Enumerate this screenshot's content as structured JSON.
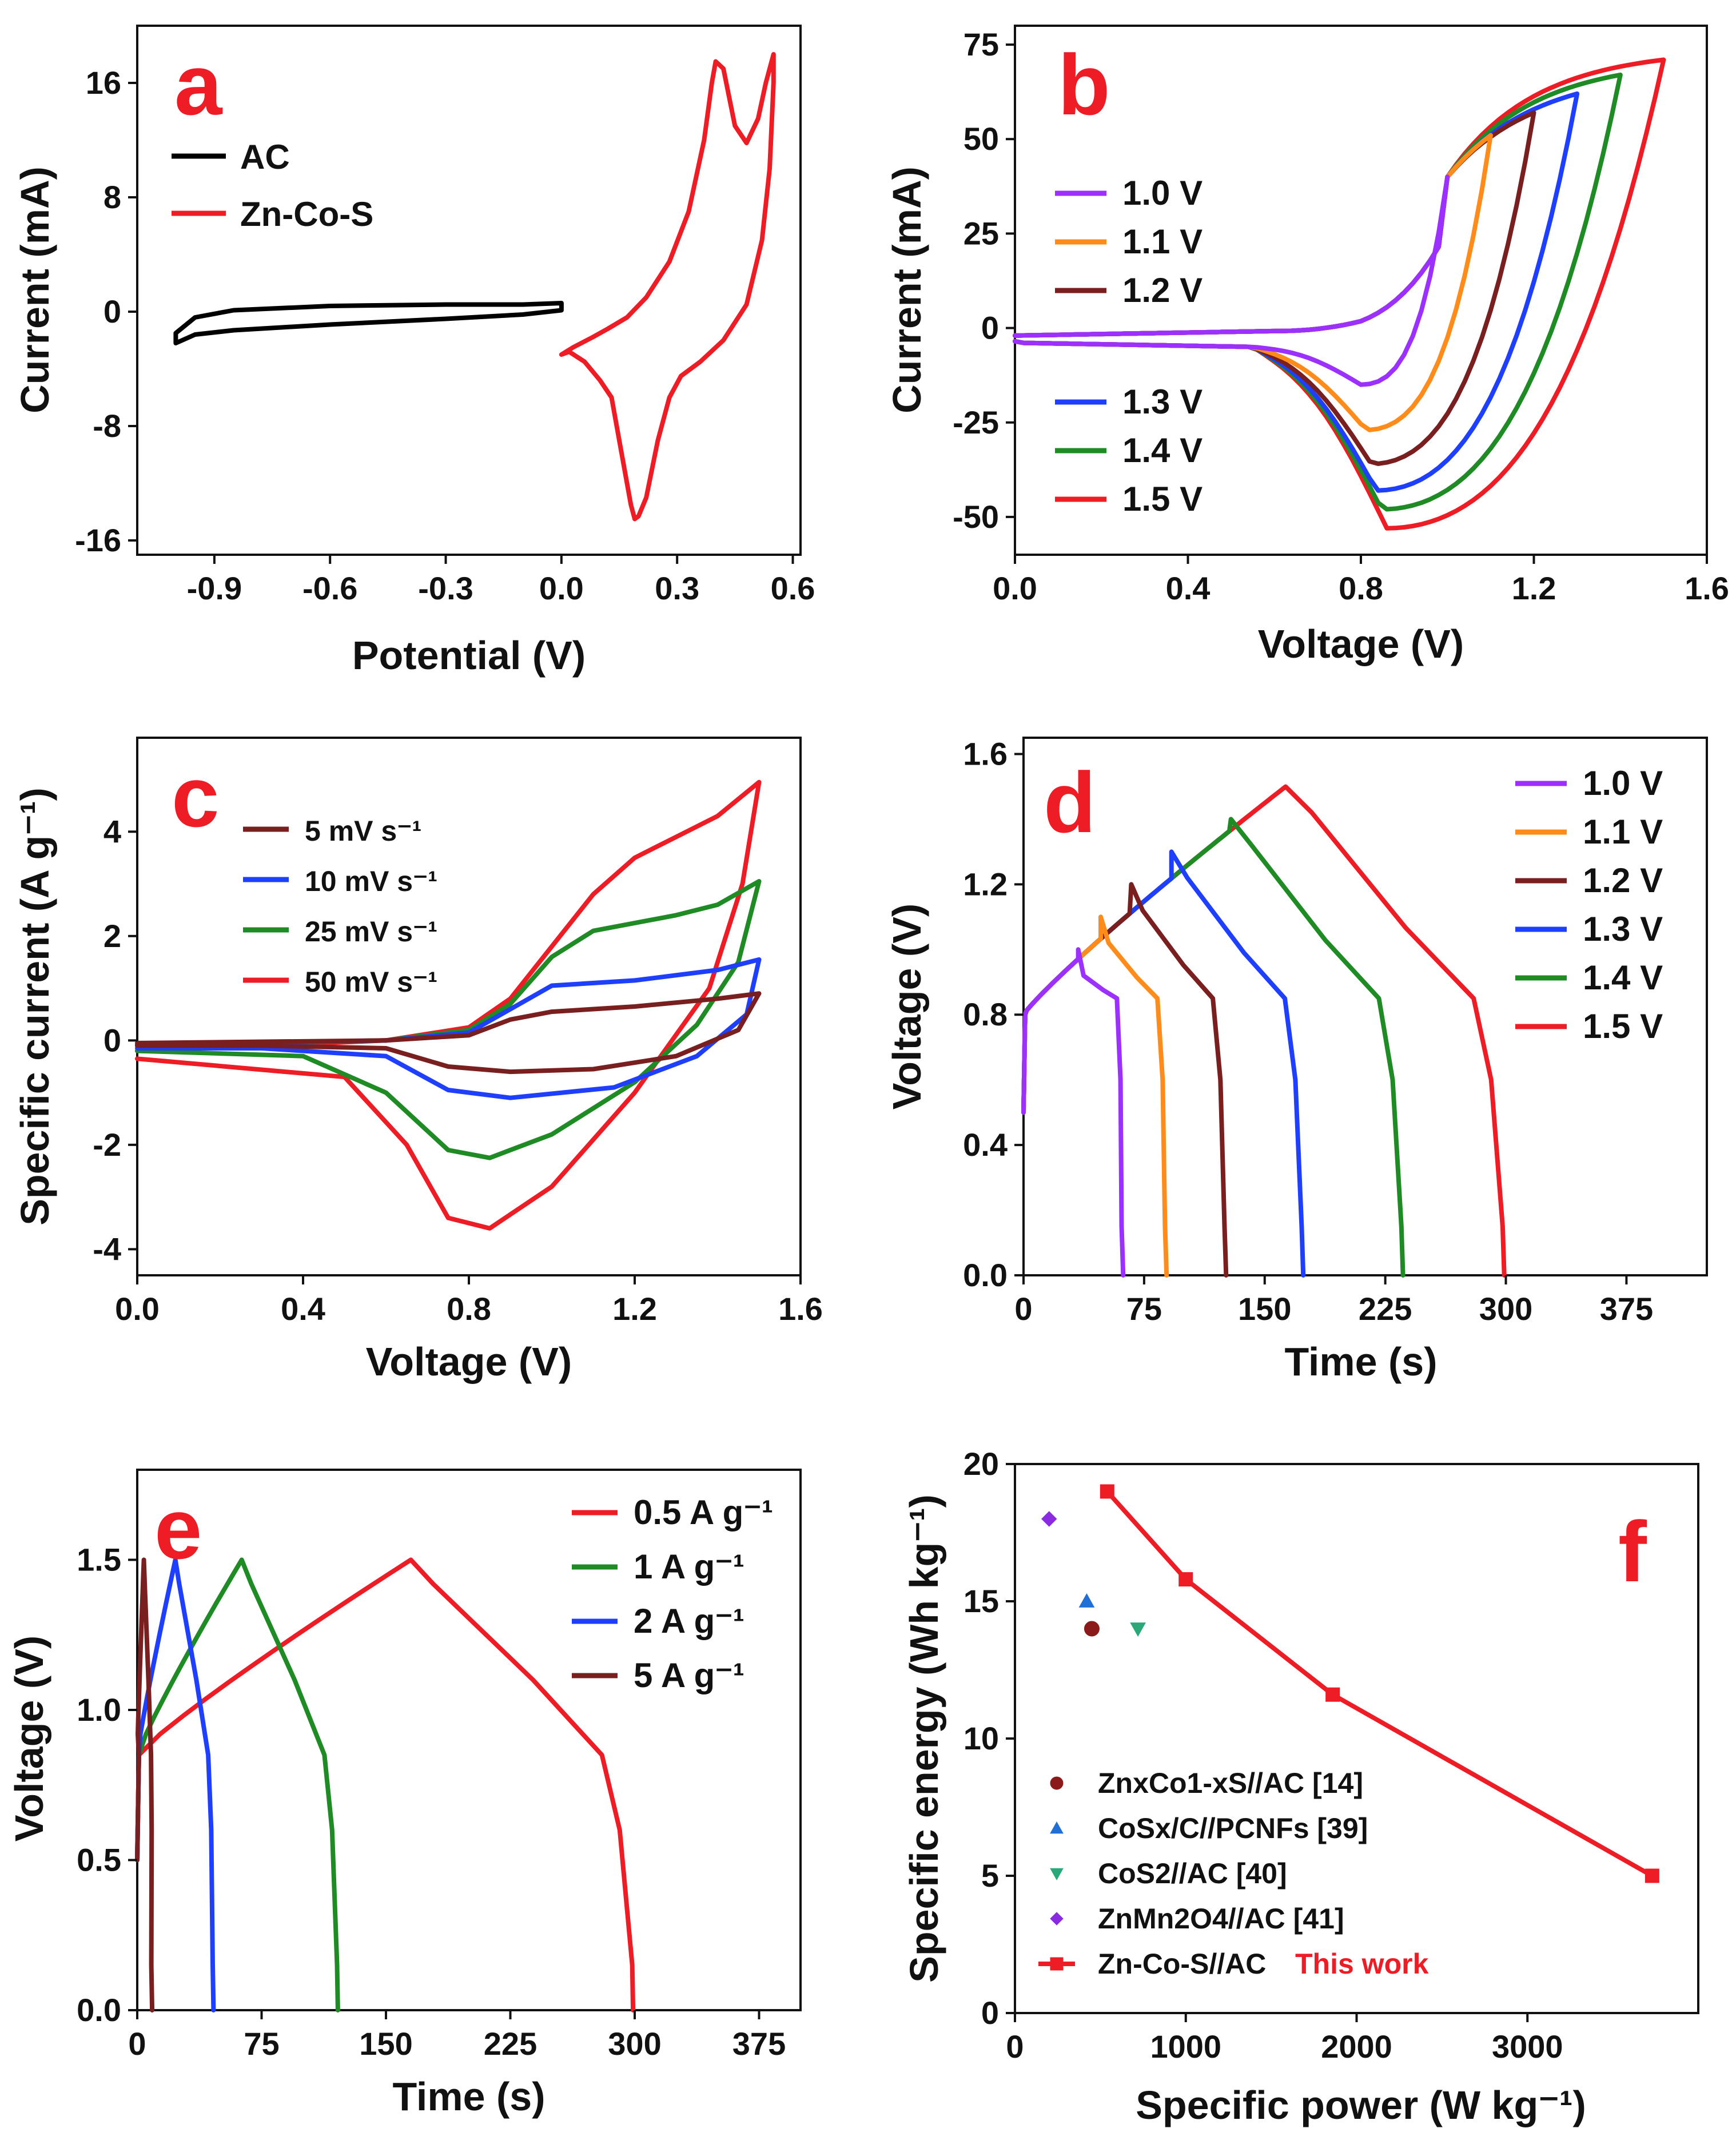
{
  "chart_data": [
    {
      "id": "a",
      "panel": "a",
      "type": "line",
      "xlabel": "Potential (V)",
      "ylabel": "Current (mA)",
      "xlim": [
        -1.1,
        0.62
      ],
      "ylim": [
        -17,
        20
      ],
      "xticks": [
        -0.9,
        -0.6,
        -0.3,
        0.0,
        0.3,
        0.6
      ],
      "xtick_labels": [
        "-0.9",
        "-0.6",
        "-0.3",
        "0.0",
        "0.3",
        "0.6"
      ],
      "yticks": [
        -16,
        -8,
        0,
        8,
        16
      ],
      "ytick_labels": [
        "-16",
        "-8",
        "0",
        "8",
        "16"
      ],
      "series": [
        {
          "name": "AC",
          "color": "#000000",
          "closed": true,
          "points": [
            [
              -1.0,
              -2.2
            ],
            [
              -0.95,
              -1.6
            ],
            [
              -0.85,
              -1.3
            ],
            [
              -0.6,
              -0.9
            ],
            [
              -0.3,
              -0.5
            ],
            [
              -0.1,
              -0.2
            ],
            [
              0.0,
              0.1
            ],
            [
              0.0,
              0.6
            ],
            [
              -0.1,
              0.5
            ],
            [
              -0.3,
              0.5
            ],
            [
              -0.6,
              0.4
            ],
            [
              -0.85,
              0.1
            ],
            [
              -0.95,
              -0.4
            ],
            [
              -1.0,
              -1.5
            ]
          ]
        },
        {
          "name": "Zn-Co-S",
          "color": "#ee1c25",
          "closed": false,
          "points": [
            [
              0.0,
              -3.0
            ],
            [
              0.03,
              -2.5
            ],
            [
              0.08,
              -1.8
            ],
            [
              0.12,
              -1.2
            ],
            [
              0.17,
              -0.4
            ],
            [
              0.22,
              1.0
            ],
            [
              0.28,
              3.5
            ],
            [
              0.33,
              7.0
            ],
            [
              0.37,
              12.0
            ],
            [
              0.39,
              16.0
            ],
            [
              0.4,
              17.5
            ],
            [
              0.42,
              17.0
            ],
            [
              0.45,
              13.0
            ],
            [
              0.48,
              11.8
            ],
            [
              0.51,
              13.5
            ],
            [
              0.53,
              16.0
            ],
            [
              0.55,
              18.0
            ],
            [
              0.55,
              16.0
            ],
            [
              0.54,
              10.0
            ],
            [
              0.52,
              5.0
            ],
            [
              0.48,
              0.5
            ],
            [
              0.42,
              -2.0
            ],
            [
              0.36,
              -3.5
            ],
            [
              0.31,
              -4.5
            ],
            [
              0.28,
              -6.0
            ],
            [
              0.25,
              -9.0
            ],
            [
              0.22,
              -13.0
            ],
            [
              0.2,
              -14.3
            ],
            [
              0.19,
              -14.5
            ],
            [
              0.18,
              -13.5
            ],
            [
              0.15,
              -9.0
            ],
            [
              0.13,
              -6.0
            ],
            [
              0.1,
              -4.8
            ],
            [
              0.06,
              -3.5
            ],
            [
              0.02,
              -2.8
            ],
            [
              0.0,
              -3.0
            ]
          ]
        }
      ],
      "legend": [
        "AC",
        "Zn-Co-S"
      ]
    },
    {
      "id": "b",
      "panel": "b",
      "type": "line",
      "xlabel": "Voltage (V)",
      "ylabel": "Current (mA)",
      "xlim": [
        0.0,
        1.6
      ],
      "ylim": [
        -60,
        80
      ],
      "xticks": [
        0.0,
        0.4,
        0.8,
        1.2,
        1.6
      ],
      "xtick_labels": [
        "0.0",
        "0.4",
        "0.8",
        "1.2",
        "1.6"
      ],
      "yticks": [
        -50,
        -25,
        0,
        25,
        50,
        75
      ],
      "ytick_labels": [
        "-50",
        "-25",
        "0",
        "25",
        "50",
        "75"
      ],
      "series": [
        {
          "name": "1.0 V",
          "color": "#9b30ff",
          "vmax": 1.0,
          "ipeak": 40,
          "cpeak": -15
        },
        {
          "name": "1.1 V",
          "color": "#ff8c1a",
          "vmax": 1.1,
          "ipeak": 51,
          "cpeak": -27
        },
        {
          "name": "1.2 V",
          "color": "#7a1f1f",
          "vmax": 1.2,
          "ipeak": 57,
          "cpeak": -36
        },
        {
          "name": "1.3 V",
          "color": "#1f3fff",
          "vmax": 1.3,
          "ipeak": 62,
          "cpeak": -43
        },
        {
          "name": "1.4 V",
          "color": "#1f8b24",
          "vmax": 1.4,
          "ipeak": 67,
          "cpeak": -48
        },
        {
          "name": "1.5 V",
          "color": "#ee1c25",
          "vmax": 1.5,
          "ipeak": 71,
          "cpeak": -53
        }
      ]
    },
    {
      "id": "c",
      "panel": "c",
      "type": "line",
      "xlabel": "Voltage (V)",
      "ylabel": "Specific current (A g⁻¹)",
      "xlim": [
        0.0,
        1.6
      ],
      "ylim": [
        -4.5,
        5.8
      ],
      "xticks": [
        0.0,
        0.4,
        0.8,
        1.2,
        1.6
      ],
      "xtick_labels": [
        "0.0",
        "0.4",
        "0.8",
        "1.2",
        "1.6"
      ],
      "yticks": [
        -4,
        -2,
        0,
        2,
        4
      ],
      "ytick_labels": [
        "-4",
        "-2",
        "0",
        "2",
        "4"
      ],
      "series": [
        {
          "name": "5 mV s⁻¹",
          "color": "#7a1f1f",
          "top": [
            [
              0.0,
              -0.05
            ],
            [
              0.6,
              0.0
            ],
            [
              0.8,
              0.1
            ],
            [
              0.9,
              0.4
            ],
            [
              1.0,
              0.55
            ],
            [
              1.2,
              0.65
            ],
            [
              1.4,
              0.8
            ],
            [
              1.5,
              0.9
            ]
          ],
          "bottom": [
            [
              1.5,
              0.9
            ],
            [
              1.45,
              0.2
            ],
            [
              1.3,
              -0.3
            ],
            [
              1.1,
              -0.55
            ],
            [
              0.9,
              -0.6
            ],
            [
              0.75,
              -0.5
            ],
            [
              0.6,
              -0.15
            ],
            [
              0.3,
              -0.1
            ],
            [
              0.0,
              -0.1
            ]
          ]
        },
        {
          "name": "10 mV s⁻¹",
          "color": "#1f3fff",
          "top": [
            [
              0.0,
              -0.08
            ],
            [
              0.6,
              0.0
            ],
            [
              0.8,
              0.15
            ],
            [
              0.9,
              0.6
            ],
            [
              1.0,
              1.05
            ],
            [
              1.2,
              1.15
            ],
            [
              1.4,
              1.35
            ],
            [
              1.5,
              1.55
            ]
          ],
          "bottom": [
            [
              1.5,
              1.55
            ],
            [
              1.47,
              0.5
            ],
            [
              1.35,
              -0.3
            ],
            [
              1.15,
              -0.9
            ],
            [
              0.9,
              -1.1
            ],
            [
              0.75,
              -0.95
            ],
            [
              0.6,
              -0.3
            ],
            [
              0.3,
              -0.15
            ],
            [
              0.0,
              -0.15
            ]
          ]
        },
        {
          "name": "25 mV s⁻¹",
          "color": "#1f8b24",
          "top": [
            [
              0.0,
              -0.1
            ],
            [
              0.6,
              0.0
            ],
            [
              0.8,
              0.2
            ],
            [
              0.9,
              0.7
            ],
            [
              1.0,
              1.6
            ],
            [
              1.1,
              2.1
            ],
            [
              1.3,
              2.4
            ],
            [
              1.4,
              2.6
            ],
            [
              1.5,
              3.05
            ]
          ],
          "bottom": [
            [
              1.5,
              3.05
            ],
            [
              1.45,
              1.5
            ],
            [
              1.35,
              0.3
            ],
            [
              1.2,
              -0.8
            ],
            [
              1.0,
              -1.8
            ],
            [
              0.85,
              -2.25
            ],
            [
              0.75,
              -2.1
            ],
            [
              0.6,
              -1.0
            ],
            [
              0.4,
              -0.3
            ],
            [
              0.0,
              -0.2
            ]
          ]
        },
        {
          "name": "50 mV s⁻¹",
          "color": "#ee1c25",
          "top": [
            [
              0.0,
              -0.2
            ],
            [
              0.6,
              0.0
            ],
            [
              0.8,
              0.25
            ],
            [
              0.9,
              0.8
            ],
            [
              1.0,
              1.8
            ],
            [
              1.1,
              2.8
            ],
            [
              1.2,
              3.5
            ],
            [
              1.3,
              3.9
            ],
            [
              1.4,
              4.3
            ],
            [
              1.5,
              4.95
            ]
          ],
          "bottom": [
            [
              1.5,
              4.95
            ],
            [
              1.46,
              3.0
            ],
            [
              1.38,
              1.0
            ],
            [
              1.2,
              -1.0
            ],
            [
              1.0,
              -2.8
            ],
            [
              0.85,
              -3.6
            ],
            [
              0.75,
              -3.4
            ],
            [
              0.65,
              -2.0
            ],
            [
              0.5,
              -0.7
            ],
            [
              0.0,
              -0.35
            ]
          ]
        }
      ]
    },
    {
      "id": "d",
      "panel": "d",
      "type": "line",
      "xlabel": "Time (s)",
      "ylabel": "Voltage (V)",
      "xlim": [
        0,
        425
      ],
      "ylim": [
        0.0,
        1.65
      ],
      "xticks": [
        0,
        75,
        150,
        225,
        300,
        375
      ],
      "xtick_labels": [
        "0",
        "75",
        "150",
        "225",
        "300",
        "375"
      ],
      "yticks": [
        0.0,
        0.4,
        0.8,
        1.2,
        1.6
      ],
      "ytick_labels": [
        "0.0",
        "0.4",
        "0.8",
        "1.2",
        "1.6"
      ],
      "series": [
        {
          "name": "1.0 V",
          "color": "#9b30ff",
          "vmax": 1.0,
          "tc": 34,
          "td": 62
        },
        {
          "name": "1.1 V",
          "color": "#ff8c1a",
          "vmax": 1.1,
          "tc": 48,
          "td": 89
        },
        {
          "name": "1.2 V",
          "color": "#7a1f1f",
          "vmax": 1.2,
          "tc": 67,
          "td": 126
        },
        {
          "name": "1.3 V",
          "color": "#1f3fff",
          "vmax": 1.3,
          "tc": 92,
          "td": 174
        },
        {
          "name": "1.4 V",
          "color": "#1f8b24",
          "vmax": 1.4,
          "tc": 129,
          "td": 236
        },
        {
          "name": "1.5 V",
          "color": "#ee1c25",
          "vmax": 1.5,
          "tc": 163,
          "td": 299
        }
      ]
    },
    {
      "id": "e",
      "panel": "e",
      "type": "line",
      "xlabel": "Time (s)",
      "ylabel": "Voltage (V)",
      "xlim": [
        0,
        400
      ],
      "ylim": [
        0.0,
        1.8
      ],
      "xticks": [
        0,
        75,
        150,
        225,
        300,
        375
      ],
      "xtick_labels": [
        "0",
        "75",
        "150",
        "225",
        "300",
        "375"
      ],
      "yticks": [
        0.0,
        0.5,
        1.0,
        1.5
      ],
      "ytick_labels": [
        "0.0",
        "0.5",
        "1.0",
        "1.5"
      ],
      "series": [
        {
          "name": "0.5 A g⁻¹",
          "color": "#ee1c25",
          "tc": 165,
          "td": 299
        },
        {
          "name": "1 A g⁻¹",
          "color": "#1f8b24",
          "tc": 63,
          "td": 121
        },
        {
          "name": "2 A g⁻¹",
          "color": "#1f3fff",
          "tc": 23,
          "td": 46
        },
        {
          "name": "5 A g⁻¹",
          "color": "#7a1f1f",
          "tc": 4,
          "td": 9
        }
      ]
    },
    {
      "id": "f",
      "panel": "f",
      "type": "scatter",
      "xlabel": "Specific power (W kg⁻¹)",
      "ylabel": "Specific energy (Wh kg⁻¹)",
      "xlim": [
        0,
        4000
      ],
      "ylim": [
        0,
        20
      ],
      "xticks": [
        0,
        1000,
        2000,
        3000
      ],
      "xtick_labels": [
        "0",
        "1000",
        "2000",
        "3000"
      ],
      "yticks": [
        0,
        5,
        10,
        15,
        20
      ],
      "ytick_labels": [
        "0",
        "5",
        "10",
        "15",
        "20"
      ],
      "series": [
        {
          "name": "ZnxCo1-xS//AC [14]",
          "color": "#8b1a1a",
          "marker": "circle",
          "x": [
            450
          ],
          "y": [
            14
          ]
        },
        {
          "name": "CoSx/C//PCNFs [39]",
          "color": "#1f6fd6",
          "marker": "triangle-up",
          "x": [
            420
          ],
          "y": [
            15
          ]
        },
        {
          "name": "CoS2//AC [40]",
          "color": "#2aa87a",
          "marker": "triangle-down",
          "x": [
            720
          ],
          "y": [
            14
          ]
        },
        {
          "name": "ZnMn2O4//AC [41]",
          "color": "#8a2be2",
          "marker": "diamond",
          "x": [
            200
          ],
          "y": [
            18
          ]
        },
        {
          "name": "Zn-Co-S//AC",
          "color": "#ee1c25",
          "marker": "square",
          "line": true,
          "x": [
            540,
            1000,
            1860,
            3730
          ],
          "y": [
            19.0,
            15.8,
            11.6,
            5.0
          ]
        }
      ],
      "annotation": "This work"
    }
  ]
}
